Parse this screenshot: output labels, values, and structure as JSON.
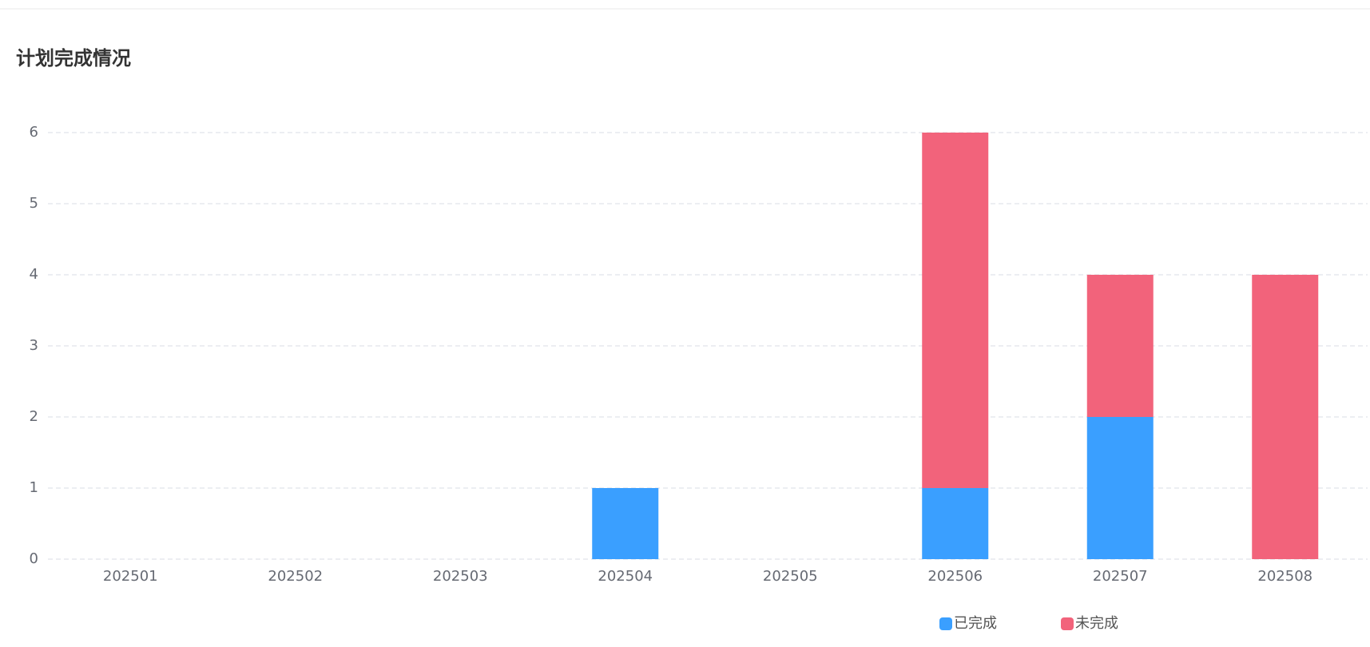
{
  "chart_data": {
    "type": "stacked_bar",
    "title": "计划完成情况",
    "categories": [
      "202501",
      "202502",
      "202503",
      "202504",
      "202505",
      "202506",
      "202507",
      "202508"
    ],
    "series": [
      {
        "name": "已完成",
        "color": "#3a9fff",
        "values": [
          0,
          0,
          0,
          1,
          0,
          1,
          2,
          0
        ]
      },
      {
        "name": "未完成",
        "color": "#f2637b",
        "values": [
          0,
          0,
          0,
          0,
          0,
          5,
          2,
          4
        ]
      }
    ],
    "ylim": [
      0,
      6
    ],
    "yticks": [
      0,
      1,
      2,
      3,
      4,
      5,
      6
    ],
    "grid": true
  }
}
